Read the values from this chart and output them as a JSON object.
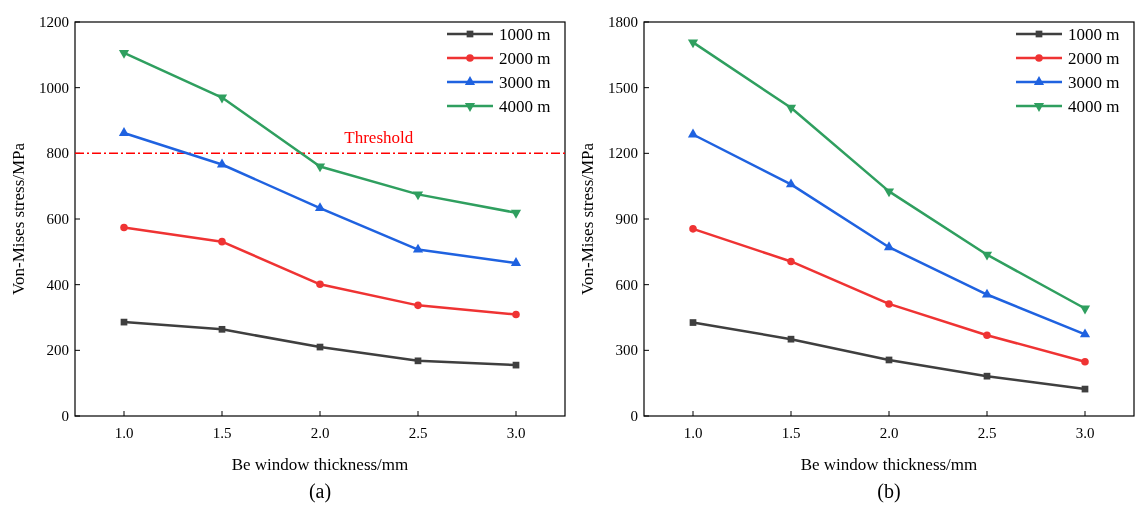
{
  "chart_data": [
    {
      "type": "line",
      "xlabel": "Be window thickness/mm",
      "ylabel": "Von-Mises stress/MPa",
      "annotations": [
        "(a)"
      ],
      "x": [
        1.0,
        1.5,
        2.0,
        2.5,
        3.0
      ],
      "xlim": [
        0.75,
        3.25
      ],
      "xticks": [
        {
          "value": 1.0,
          "label": "1.0"
        },
        {
          "value": 1.5,
          "label": "1.5"
        },
        {
          "value": 2.0,
          "label": "2.0"
        },
        {
          "value": 2.5,
          "label": "2.5"
        },
        {
          "value": 3.0,
          "label": "3.0"
        }
      ],
      "ylim": [
        0,
        1200
      ],
      "yticks": [
        0,
        200,
        400,
        600,
        800,
        1000,
        1200
      ],
      "legend": "top right",
      "grid": false,
      "ref_lines": [
        {
          "axis": "y",
          "value": 800,
          "label": "Threshold",
          "color": "#ff0000",
          "line_style": "dashed"
        }
      ],
      "series": [
        {
          "name": "1000 m",
          "color": "#3f3f3f",
          "marker": "square",
          "values": [
            286,
            264,
            210,
            168,
            155
          ]
        },
        {
          "name": "2000 m",
          "color": "#ef3333",
          "marker": "circle",
          "values": [
            574,
            531,
            401,
            337,
            309
          ]
        },
        {
          "name": "3000 m",
          "color": "#1f62e0",
          "marker": "triangle",
          "values": [
            862,
            766,
            633,
            507,
            466
          ]
        },
        {
          "name": "4000 m",
          "color": "#2f9f5f",
          "marker": "triangle-down",
          "values": [
            1106,
            970,
            760,
            675,
            619
          ]
        }
      ]
    },
    {
      "type": "line",
      "xlabel": "Be window thickness/mm",
      "ylabel": "Von-Mises stress/MPa",
      "annotations": [
        "(b)"
      ],
      "x": [
        1.0,
        1.5,
        2.0,
        2.5,
        3.0
      ],
      "xlim": [
        0.75,
        3.25
      ],
      "xticks": [
        {
          "value": 1.0,
          "label": "1.0"
        },
        {
          "value": 1.5,
          "label": "1.5"
        },
        {
          "value": 2.0,
          "label": "2.0"
        },
        {
          "value": 2.5,
          "label": "2.5"
        },
        {
          "value": 3.0,
          "label": "3.0"
        }
      ],
      "ylim": [
        0,
        1800
      ],
      "yticks": [
        0,
        300,
        600,
        900,
        1200,
        1500,
        1800
      ],
      "legend": "top right",
      "grid": false,
      "series": [
        {
          "name": "1000 m",
          "color": "#3f3f3f",
          "marker": "square",
          "values": [
            427,
            351,
            256,
            182,
            123
          ]
        },
        {
          "name": "2000 m",
          "color": "#ef3333",
          "marker": "circle",
          "values": [
            855,
            706,
            512,
            369,
            248
          ]
        },
        {
          "name": "3000 m",
          "color": "#1f62e0",
          "marker": "triangle",
          "values": [
            1286,
            1058,
            771,
            555,
            373
          ]
        },
        {
          "name": "4000 m",
          "color": "#2f9f5f",
          "marker": "triangle-down",
          "values": [
            1707,
            1408,
            1026,
            737,
            491
          ]
        }
      ]
    }
  ]
}
